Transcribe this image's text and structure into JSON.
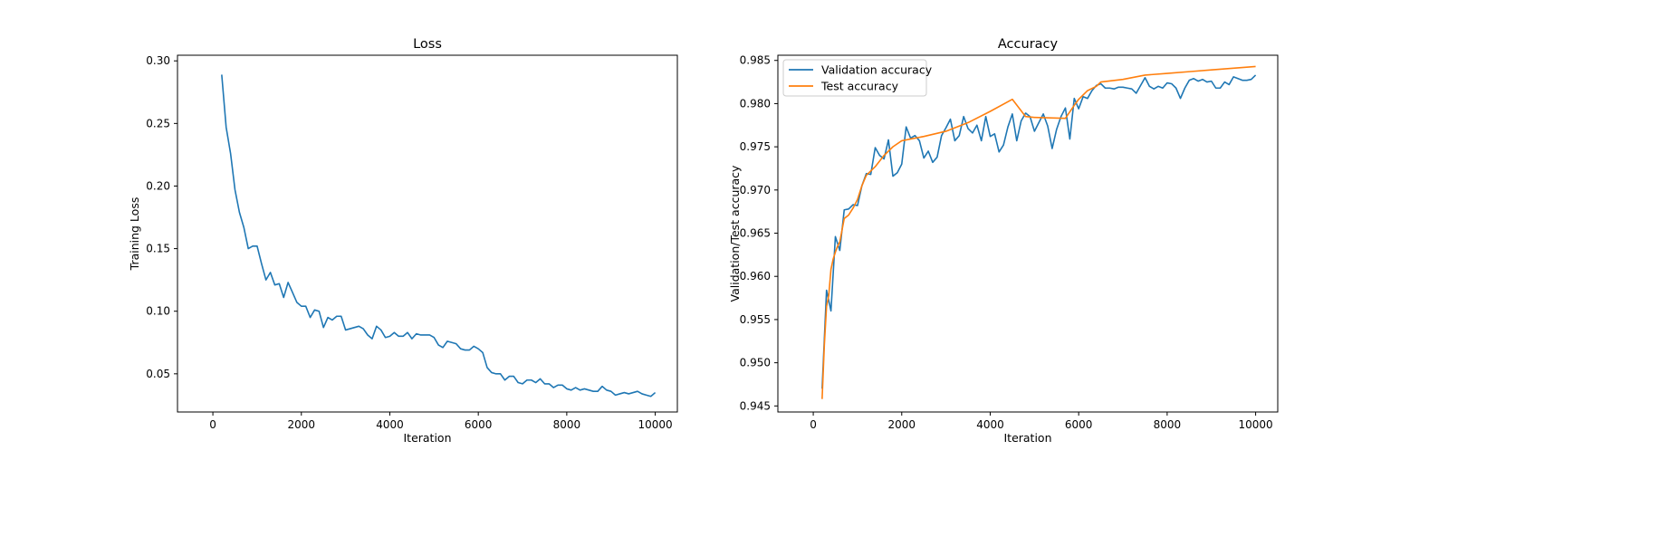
{
  "chart_data": [
    {
      "type": "line",
      "title": "Loss",
      "xlabel": "Iteration",
      "ylabel": "Training Loss",
      "xlim": [
        -800,
        10500
      ],
      "ylim": [
        0.0195,
        0.3045
      ],
      "xticks": [
        0,
        2000,
        4000,
        6000,
        8000,
        10000
      ],
      "yticks": [
        0.05,
        0.1,
        0.15,
        0.2,
        0.25,
        0.3
      ],
      "xtick_labels": [
        "0",
        "2000",
        "4000",
        "6000",
        "8000",
        "10000"
      ],
      "ytick_labels": [
        "0.05",
        "0.10",
        "0.15",
        "0.20",
        "0.25",
        "0.30"
      ],
      "grid": false,
      "series": [
        {
          "color": "#1f77b4",
          "x": [
            200,
            300,
            400,
            500,
            600,
            700,
            800,
            900,
            1000,
            1100,
            1200,
            1300,
            1400,
            1500,
            1600,
            1700,
            1800,
            1900,
            2000,
            2100,
            2200,
            2300,
            2400,
            2500,
            2600,
            2700,
            2800,
            2900,
            3000,
            3100,
            3200,
            3300,
            3400,
            3500,
            3600,
            3700,
            3800,
            3900,
            4000,
            4100,
            4200,
            4300,
            4400,
            4500,
            4600,
            4700,
            4800,
            4900,
            5000,
            5100,
            5200,
            5300,
            5400,
            5500,
            5600,
            5700,
            5800,
            5900,
            6000,
            6100,
            6200,
            6300,
            6400,
            6500,
            6600,
            6700,
            6800,
            6900,
            7000,
            7100,
            7200,
            7300,
            7400,
            7500,
            7600,
            7700,
            7800,
            7900,
            8000,
            8100,
            8200,
            8300,
            8400,
            8500,
            8600,
            8700,
            8800,
            8900,
            9000,
            9100,
            9200,
            9300,
            9400,
            9500,
            9600,
            9700,
            9800,
            9900,
            10000
          ],
          "values": [
            0.289,
            0.247,
            0.226,
            0.197,
            0.179,
            0.167,
            0.15,
            0.152,
            0.152,
            0.138,
            0.125,
            0.131,
            0.121,
            0.122,
            0.111,
            0.123,
            0.115,
            0.107,
            0.104,
            0.104,
            0.095,
            0.101,
            0.1,
            0.087,
            0.095,
            0.093,
            0.096,
            0.096,
            0.085,
            0.086,
            0.087,
            0.088,
            0.086,
            0.081,
            0.078,
            0.088,
            0.085,
            0.079,
            0.08,
            0.083,
            0.08,
            0.08,
            0.083,
            0.078,
            0.082,
            0.081,
            0.081,
            0.081,
            0.079,
            0.073,
            0.071,
            0.076,
            0.075,
            0.074,
            0.07,
            0.069,
            0.069,
            0.072,
            0.07,
            0.067,
            0.055,
            0.051,
            0.05,
            0.05,
            0.045,
            0.048,
            0.048,
            0.043,
            0.042,
            0.045,
            0.045,
            0.043,
            0.046,
            0.042,
            0.042,
            0.039,
            0.041,
            0.041,
            0.038,
            0.037,
            0.039,
            0.037,
            0.038,
            0.037,
            0.036,
            0.036,
            0.04,
            0.037,
            0.036,
            0.033,
            0.034,
            0.035,
            0.034,
            0.035,
            0.036,
            0.034,
            0.033,
            0.032,
            0.035
          ]
        }
      ]
    },
    {
      "type": "line",
      "title": "Accuracy",
      "xlabel": "Iteration",
      "ylabel": "Validation/Test accuracy",
      "xlim": [
        -800,
        10500
      ],
      "ylim": [
        0.9443,
        0.9856
      ],
      "xticks": [
        0,
        2000,
        4000,
        6000,
        8000,
        10000
      ],
      "yticks": [
        0.945,
        0.95,
        0.955,
        0.96,
        0.965,
        0.97,
        0.975,
        0.98,
        0.985
      ],
      "xtick_labels": [
        "0",
        "2000",
        "4000",
        "6000",
        "8000",
        "10000"
      ],
      "ytick_labels": [
        "0.945",
        "0.950",
        "0.955",
        "0.960",
        "0.965",
        "0.970",
        "0.975",
        "0.980",
        "0.985"
      ],
      "grid": false,
      "legend_position": "top-left",
      "series": [
        {
          "name": "Validation accuracy",
          "color": "#1f77b4",
          "x": [
            200,
            300,
            400,
            500,
            600,
            700,
            800,
            900,
            1000,
            1100,
            1200,
            1300,
            1400,
            1500,
            1600,
            1700,
            1800,
            1900,
            2000,
            2100,
            2200,
            2300,
            2400,
            2500,
            2600,
            2700,
            2800,
            2900,
            3000,
            3100,
            3200,
            3300,
            3400,
            3500,
            3600,
            3700,
            3800,
            3900,
            4000,
            4100,
            4200,
            4300,
            4400,
            4500,
            4600,
            4700,
            4800,
            4900,
            5000,
            5100,
            5200,
            5300,
            5400,
            5500,
            5600,
            5700,
            5800,
            5900,
            6000,
            6100,
            6200,
            6300,
            6400,
            6500,
            6600,
            6700,
            6800,
            6900,
            7000,
            7100,
            7200,
            7300,
            7400,
            7500,
            7600,
            7700,
            7800,
            7900,
            8000,
            8100,
            8200,
            8300,
            8400,
            8500,
            8600,
            8700,
            8800,
            8900,
            9000,
            9100,
            9200,
            9300,
            9400,
            9500,
            9600,
            9700,
            9800,
            9900,
            10000
          ],
          "values": [
            0.947,
            0.9584,
            0.956,
            0.9646,
            0.963,
            0.9677,
            0.9678,
            0.9683,
            0.9682,
            0.9705,
            0.9719,
            0.9718,
            0.9749,
            0.974,
            0.9736,
            0.9758,
            0.9716,
            0.972,
            0.973,
            0.9773,
            0.976,
            0.9763,
            0.9757,
            0.9737,
            0.9745,
            0.9732,
            0.9738,
            0.9763,
            0.9772,
            0.9782,
            0.9757,
            0.9763,
            0.9785,
            0.9771,
            0.9766,
            0.9775,
            0.9757,
            0.9785,
            0.9762,
            0.9765,
            0.9744,
            0.9752,
            0.9773,
            0.9788,
            0.9757,
            0.978,
            0.9789,
            0.9785,
            0.9768,
            0.9778,
            0.9788,
            0.9774,
            0.9748,
            0.977,
            0.9785,
            0.9795,
            0.9759,
            0.9806,
            0.9794,
            0.9808,
            0.9806,
            0.9815,
            0.9821,
            0.9823,
            0.9818,
            0.9818,
            0.9817,
            0.9819,
            0.9819,
            0.9818,
            0.9817,
            0.9812,
            0.9821,
            0.983,
            0.982,
            0.9817,
            0.982,
            0.9818,
            0.9824,
            0.9823,
            0.9818,
            0.9806,
            0.9818,
            0.9827,
            0.9829,
            0.9826,
            0.9828,
            0.9825,
            0.9826,
            0.9818,
            0.9818,
            0.9825,
            0.9822,
            0.9831,
            0.9829,
            0.9827,
            0.9827,
            0.9828,
            0.9833
          ]
        },
        {
          "name": "Test accuracy",
          "color": "#ff7f0e",
          "x": [
            200,
            250,
            300,
            350,
            400,
            450,
            500,
            550,
            600,
            700,
            800,
            900,
            1000,
            1100,
            1200,
            1400,
            1600,
            1800,
            2000,
            2500,
            3000,
            3500,
            4000,
            4500,
            4800,
            5000,
            5700,
            5900,
            6000,
            6200,
            6400,
            6500,
            7000,
            7500,
            8000,
            8500,
            9000,
            9500,
            10000
          ],
          "values": [
            0.9458,
            0.952,
            0.9565,
            0.9578,
            0.9608,
            0.962,
            0.9628,
            0.9635,
            0.964,
            0.9667,
            0.9671,
            0.9679,
            0.9689,
            0.9705,
            0.9717,
            0.9727,
            0.974,
            0.975,
            0.9757,
            0.9762,
            0.9768,
            0.9778,
            0.9791,
            0.9805,
            0.9785,
            0.9784,
            0.9783,
            0.9798,
            0.9805,
            0.9815,
            0.982,
            0.9825,
            0.9828,
            0.9833,
            0.9835,
            0.9837,
            0.9839,
            0.9841,
            0.9843
          ]
        }
      ]
    }
  ]
}
